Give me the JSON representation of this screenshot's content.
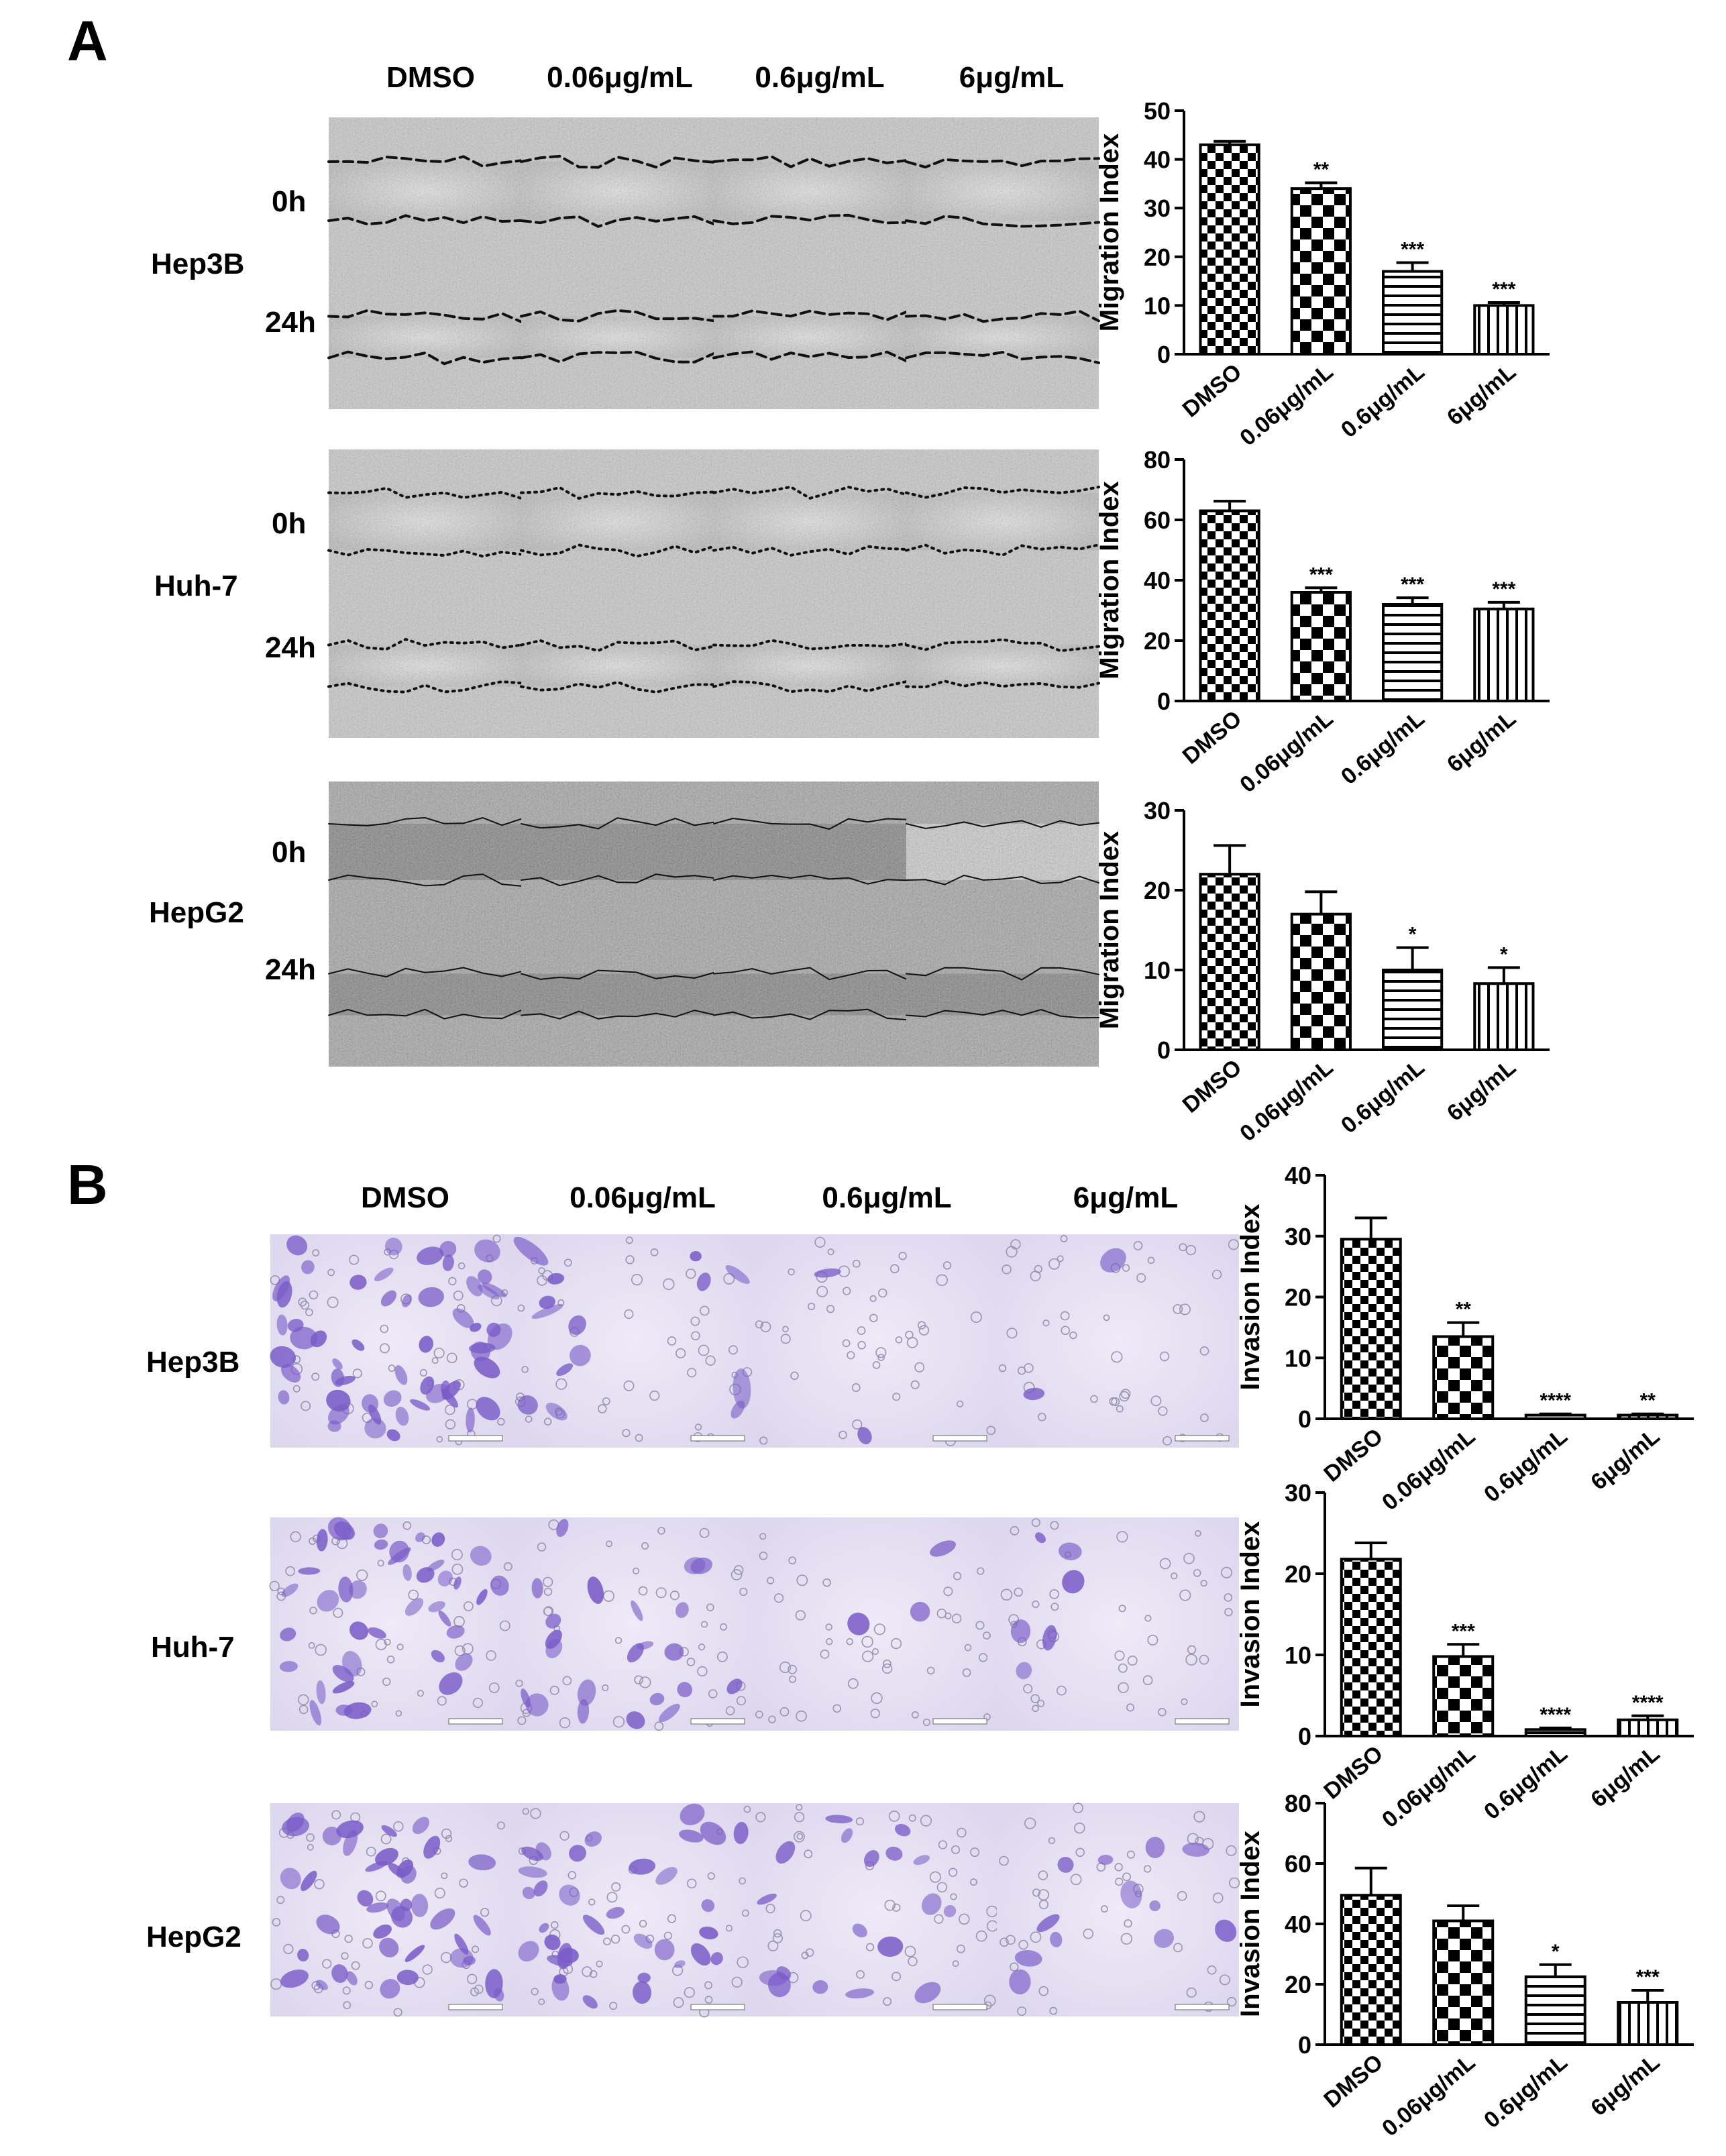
{
  "panel_a": {
    "letter": "A",
    "col_headers": [
      "DMSO",
      "0.06μg/mL",
      "0.6μg/mL",
      "6μg/mL"
    ],
    "rows": [
      {
        "label": "Hep3B",
        "times": [
          "0h",
          "24h"
        ],
        "line_style": "dashed",
        "tone": "light"
      },
      {
        "label": "Huh-7",
        "times": [
          "0h",
          "24h"
        ],
        "line_style": "dotted",
        "tone": "light"
      },
      {
        "label": "HepG2",
        "times": [
          "0h",
          "24h"
        ],
        "line_style": "outlined",
        "tone": "dark"
      }
    ]
  },
  "panel_b": {
    "letter": "B",
    "col_headers": [
      "DMSO",
      "0.06μg/mL",
      "0.6μg/mL",
      "6μg/mL"
    ],
    "rows": [
      {
        "label": "Hep3B"
      },
      {
        "label": "Huh-7"
      },
      {
        "label": "HepG2"
      }
    ],
    "stain_color": "#7a5cc8"
  },
  "chart_data": [
    {
      "type": "bar",
      "panel": "A",
      "cell_line": "Hep3B",
      "ylabel": "Migration Index",
      "ylim": [
        0,
        50
      ],
      "yticks": [
        0,
        10,
        20,
        30,
        40,
        50
      ],
      "categories": [
        "DMSO",
        "0.06μg/mL",
        "0.6μg/mL",
        "6μg/mL"
      ],
      "values": [
        43,
        34,
        17,
        10
      ],
      "errors": [
        0.7,
        1.2,
        1.8,
        0.6
      ],
      "annotations": [
        "",
        "**",
        "***",
        "***"
      ],
      "patterns": [
        "check",
        "check_large",
        "horizontal",
        "vertical"
      ]
    },
    {
      "type": "bar",
      "panel": "A",
      "cell_line": "Huh-7",
      "ylabel": "Migration Index",
      "ylim": [
        0,
        80
      ],
      "yticks": [
        0,
        20,
        40,
        60,
        80
      ],
      "categories": [
        "DMSO",
        "0.06μg/mL",
        "0.6μg/mL",
        "6μg/mL"
      ],
      "values": [
        63,
        36,
        32,
        30.5
      ],
      "errors": [
        3.2,
        1.5,
        2.2,
        2.2
      ],
      "annotations": [
        "",
        "***",
        "***",
        "***"
      ],
      "patterns": [
        "check",
        "check_large",
        "horizontal",
        "vertical"
      ]
    },
    {
      "type": "bar",
      "panel": "A",
      "cell_line": "HepG2",
      "ylabel": "Migration Index",
      "ylim": [
        0,
        30
      ],
      "yticks": [
        0,
        10,
        20,
        30
      ],
      "categories": [
        "DMSO",
        "0.06μg/mL",
        "0.6μg/mL",
        "6μg/mL"
      ],
      "values": [
        22,
        17,
        10,
        8.3
      ],
      "errors": [
        3.6,
        2.8,
        2.8,
        2.0
      ],
      "annotations": [
        "",
        "",
        "*",
        "*"
      ],
      "patterns": [
        "check",
        "check_large",
        "horizontal",
        "vertical"
      ]
    },
    {
      "type": "bar",
      "panel": "B",
      "cell_line": "Hep3B",
      "ylabel": "Invasion Index",
      "ylim": [
        0,
        40
      ],
      "yticks": [
        0,
        10,
        20,
        30,
        40
      ],
      "categories": [
        "DMSO",
        "0.06μg/mL",
        "0.6μg/mL",
        "6μg/mL"
      ],
      "values": [
        29.5,
        13.5,
        0.6,
        0.6
      ],
      "errors": [
        3.5,
        2.3,
        0.2,
        0.2
      ],
      "annotations": [
        "",
        "**",
        "****",
        "**"
      ],
      "patterns": [
        "check",
        "check_large",
        "horizontal",
        "vertical"
      ]
    },
    {
      "type": "bar",
      "panel": "B",
      "cell_line": "Huh-7",
      "ylabel": "Invasion Index",
      "ylim": [
        0,
        30
      ],
      "yticks": [
        0,
        10,
        20,
        30
      ],
      "categories": [
        "DMSO",
        "0.06μg/mL",
        "0.6μg/mL",
        "6μg/mL"
      ],
      "values": [
        21.8,
        9.8,
        0.8,
        2.0
      ],
      "errors": [
        2.0,
        1.5,
        0.2,
        0.5
      ],
      "annotations": [
        "",
        "***",
        "****",
        "****"
      ],
      "patterns": [
        "check",
        "check_large",
        "horizontal",
        "vertical"
      ]
    },
    {
      "type": "bar",
      "panel": "B",
      "cell_line": "HepG2",
      "ylabel": "Invasion Index",
      "ylim": [
        0,
        80
      ],
      "yticks": [
        0,
        20,
        40,
        60,
        80
      ],
      "categories": [
        "DMSO",
        "0.06μg/mL",
        "0.6μg/mL",
        "6μg/mL"
      ],
      "values": [
        49.5,
        41,
        22.5,
        14
      ],
      "errors": [
        9,
        5,
        4,
        4
      ],
      "annotations": [
        "",
        "",
        "*",
        "***"
      ],
      "patterns": [
        "check",
        "check_large",
        "horizontal",
        "vertical"
      ]
    }
  ]
}
